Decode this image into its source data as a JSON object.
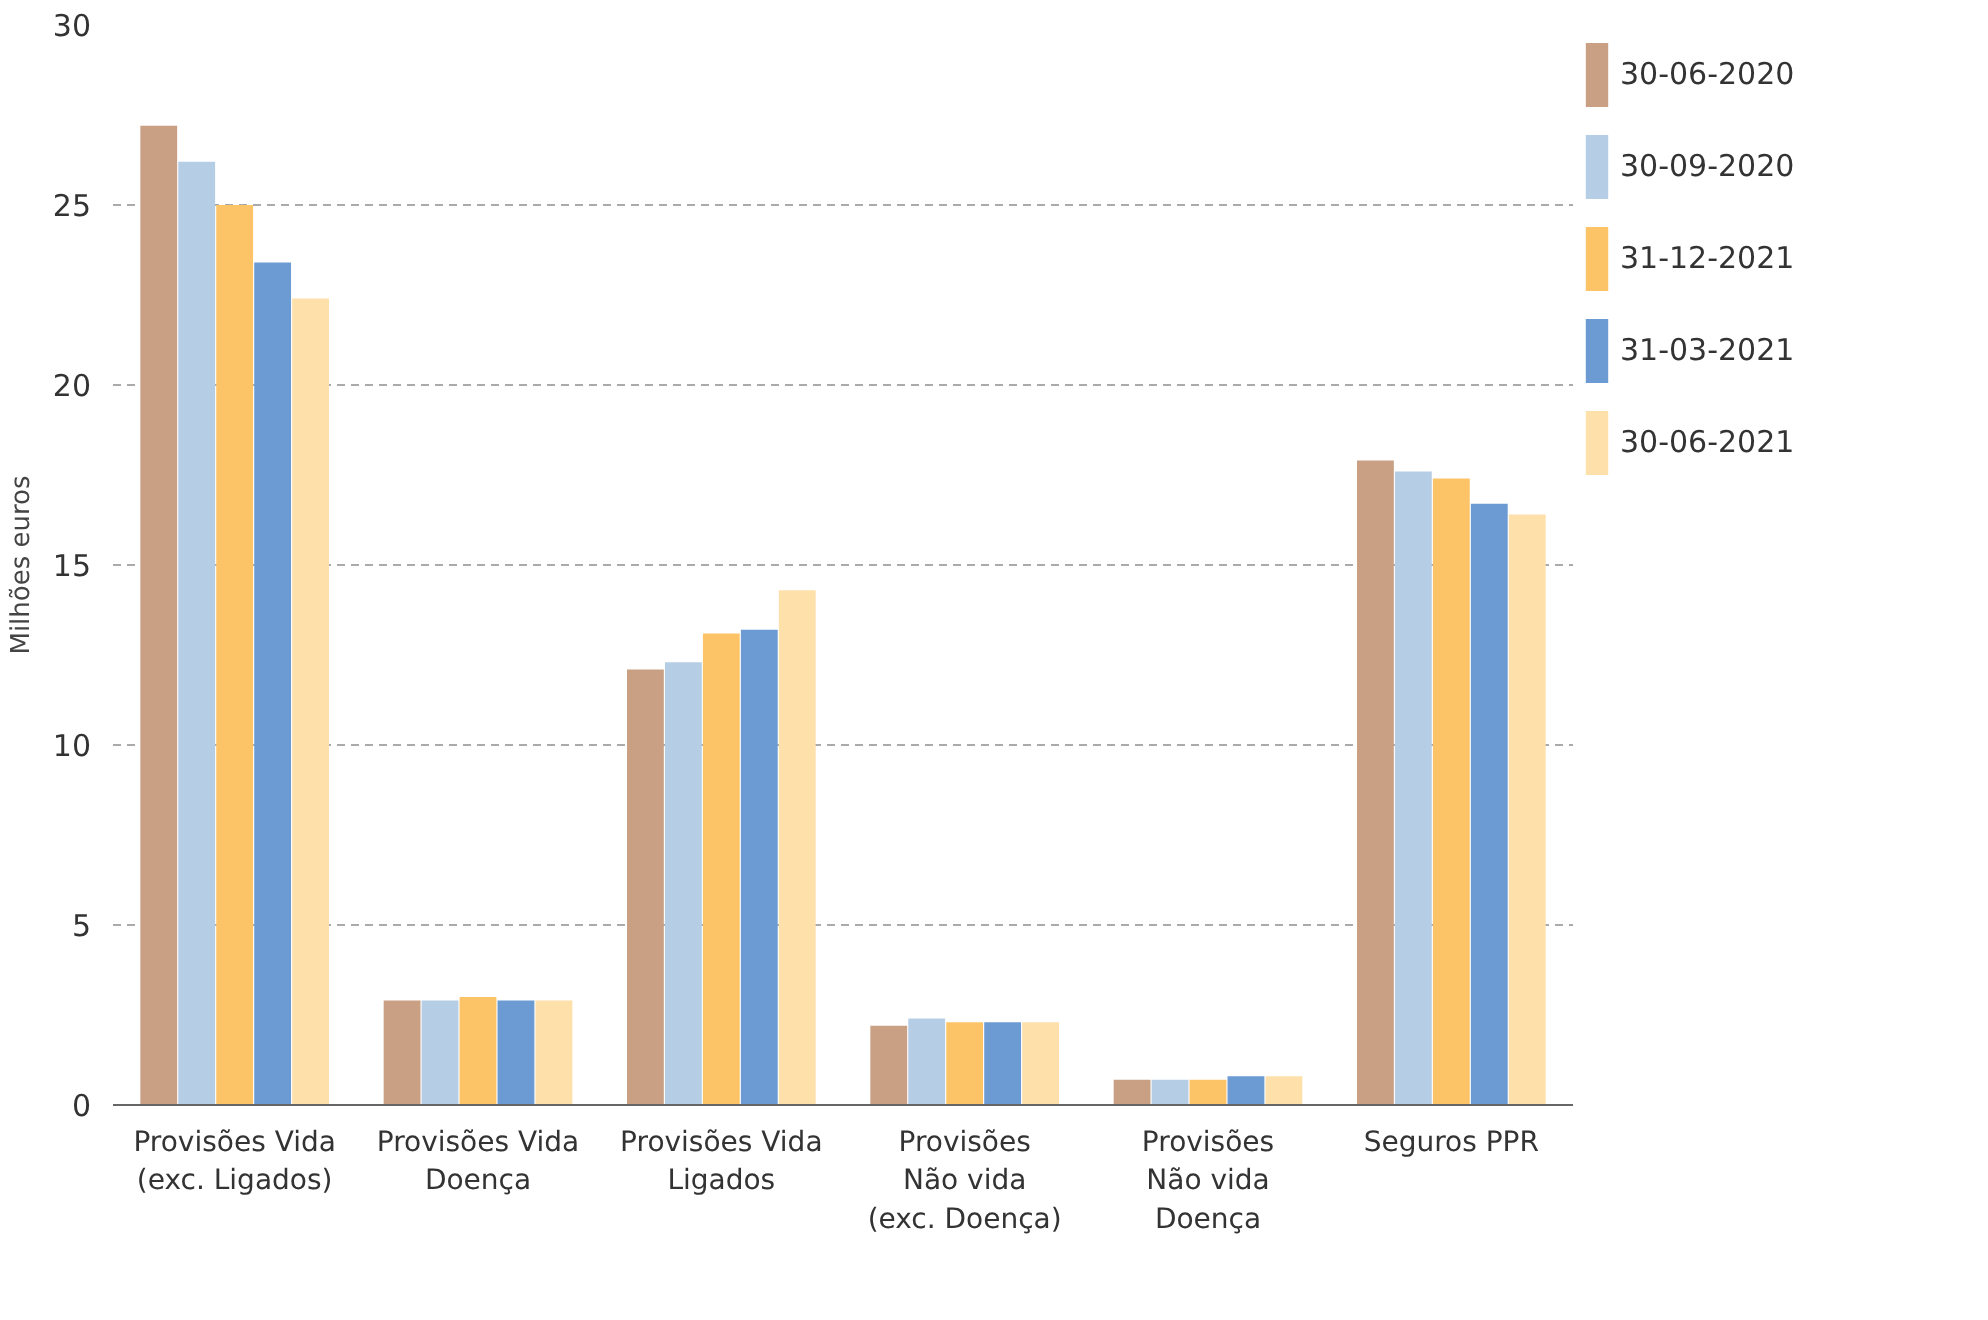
{
  "chart_data": {
    "type": "bar",
    "ylabel": "Milhões euros",
    "categories": [
      "Provisões Vida\n(exc. Ligados)",
      "Provisões Vida\nDoença",
      "Provisões Vida\nLigados",
      "Provisões\nNão vida\n(exc. Doença)",
      "Provisões\nNão vida\nDoença",
      "Seguros PPR"
    ],
    "series": [
      {
        "name": "30-06-2020",
        "color": "#c9a084",
        "values": [
          27.2,
          2.9,
          12.1,
          2.2,
          0.7,
          17.9
        ]
      },
      {
        "name": "30-09-2020",
        "color": "#b6cde6",
        "values": [
          26.2,
          2.9,
          12.3,
          2.4,
          0.7,
          17.6
        ]
      },
      {
        "name": "31-12-2021",
        "color": "#fcc467",
        "values": [
          25.0,
          3.0,
          13.1,
          2.3,
          0.7,
          17.4
        ]
      },
      {
        "name": "31-03-2021",
        "color": "#6b9bd2",
        "values": [
          23.4,
          2.9,
          13.2,
          2.3,
          0.8,
          16.7
        ]
      },
      {
        "name": "30-06-2021",
        "color": "#fde0aa",
        "values": [
          22.4,
          2.9,
          14.3,
          2.3,
          0.8,
          16.4
        ]
      }
    ],
    "ylim": [
      0,
      30
    ],
    "yticks": [
      0,
      5,
      10,
      15,
      20,
      25,
      30
    ],
    "grid": "y",
    "legend": "right"
  }
}
